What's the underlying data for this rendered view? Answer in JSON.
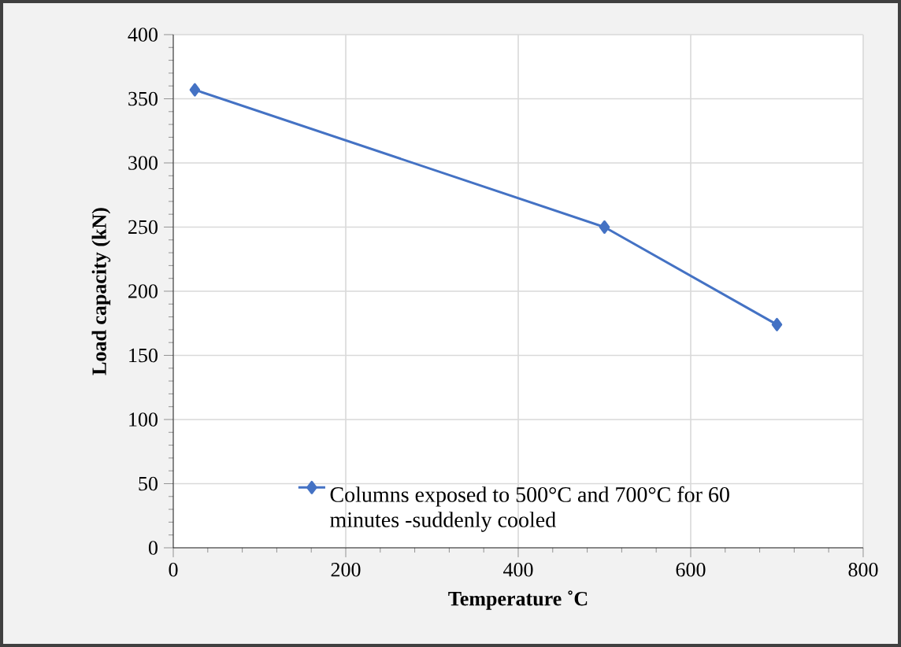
{
  "chart_data": {
    "type": "line",
    "xlabel": "Temperature ˚C",
    "ylabel": "Load capacity (kN)",
    "x": [
      25,
      500,
      700
    ],
    "series": [
      {
        "name": "Columns exposed to 500°C and 700°C for 60 minutes -suddenly cooled",
        "color": "#4472c4",
        "values": [
          357,
          250,
          174
        ]
      }
    ],
    "xlim": [
      0,
      800
    ],
    "xticks": [
      0,
      200,
      400,
      600,
      800
    ],
    "ylim": [
      0,
      400
    ],
    "yticks": [
      0,
      50,
      100,
      150,
      200,
      250,
      300,
      350,
      400
    ],
    "grid": true,
    "legend": "bottom",
    "marker": "diamond",
    "line_style": "solid"
  }
}
